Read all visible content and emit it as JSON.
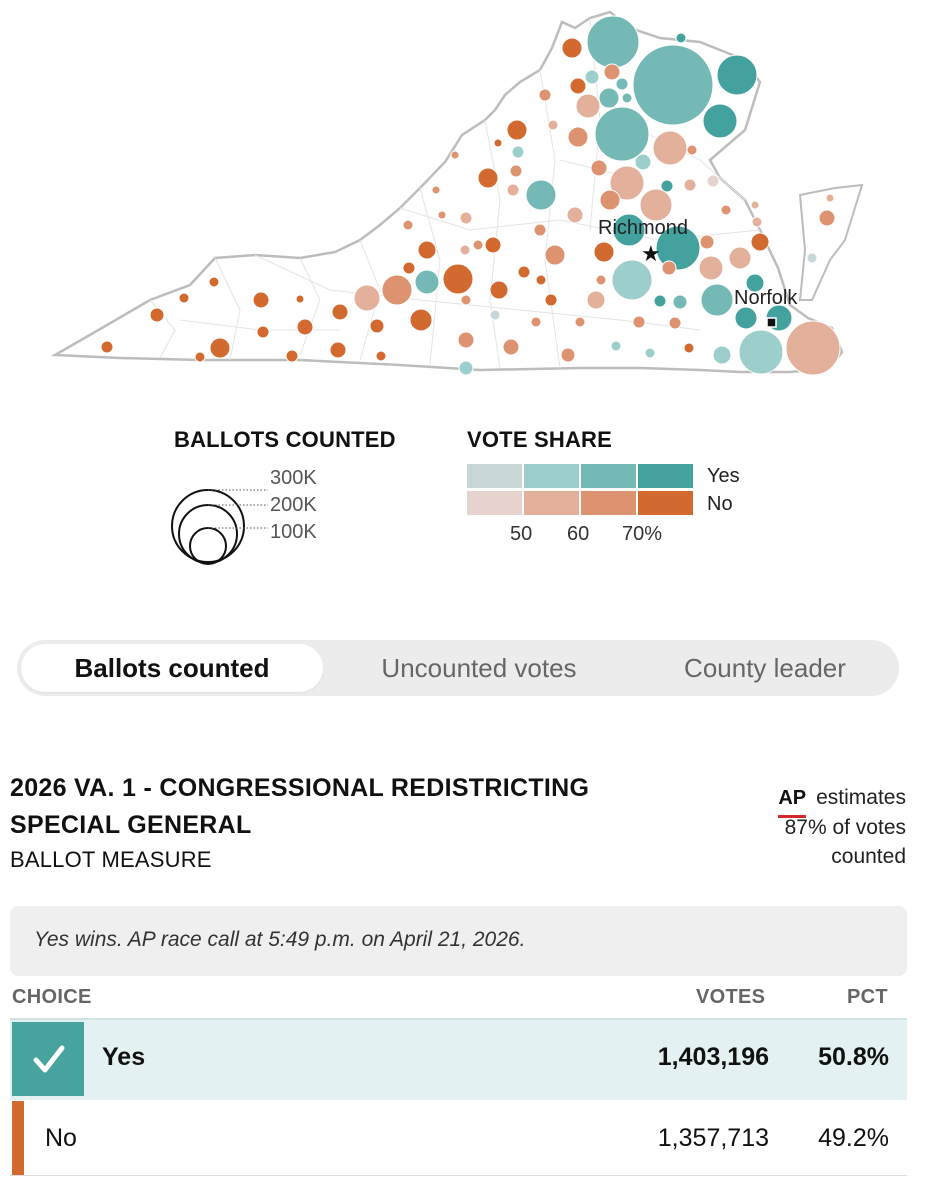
{
  "map": {
    "labels": {
      "richmond": "Richmond",
      "norfolk": "Norfolk"
    },
    "colors": {
      "yes_light": "#c9d6d7",
      "yes_mid": "#9ccfcc",
      "yes_mid2": "#74b9b6",
      "yes_dark": "#44a29e",
      "no_light": "#e7d3ce",
      "no_mid": "#e2b09b",
      "no_mid2": "#dd9270",
      "no_dark": "#d2692f"
    }
  },
  "legend": {
    "ballots_title": "BALLOTS COUNTED",
    "ballots_scale": [
      "300K",
      "200K",
      "100K"
    ],
    "share_title": "VOTE SHARE",
    "share_yes": "Yes",
    "share_no": "No",
    "share_ticks": [
      "50",
      "60",
      "70%"
    ]
  },
  "tabs": [
    {
      "label": "Ballots counted",
      "active": true
    },
    {
      "label": "Uncounted votes",
      "active": false
    },
    {
      "label": "County leader",
      "active": false
    }
  ],
  "race": {
    "title_line1": "2026 VA. 1 - CONGRESSIONAL REDISTRICTING",
    "title_line2": "SPECIAL GENERAL",
    "subtitle": "BALLOT MEASURE",
    "ap_logo": "AP",
    "ap_line1": "estimates",
    "ap_line2": "87% of votes",
    "ap_line3": "counted",
    "call_text": "Yes wins. AP race call at 5:49 p.m. on April 21, 2026."
  },
  "results_table": {
    "headers": {
      "choice": "CHOICE",
      "votes": "VOTES",
      "pct": "PCT"
    },
    "rows": [
      {
        "choice": "Yes",
        "votes": "1,403,196",
        "pct": "50.8%",
        "winner": true
      },
      {
        "choice": "No",
        "votes": "1,357,713",
        "pct": "49.2%",
        "winner": false
      }
    ]
  }
}
